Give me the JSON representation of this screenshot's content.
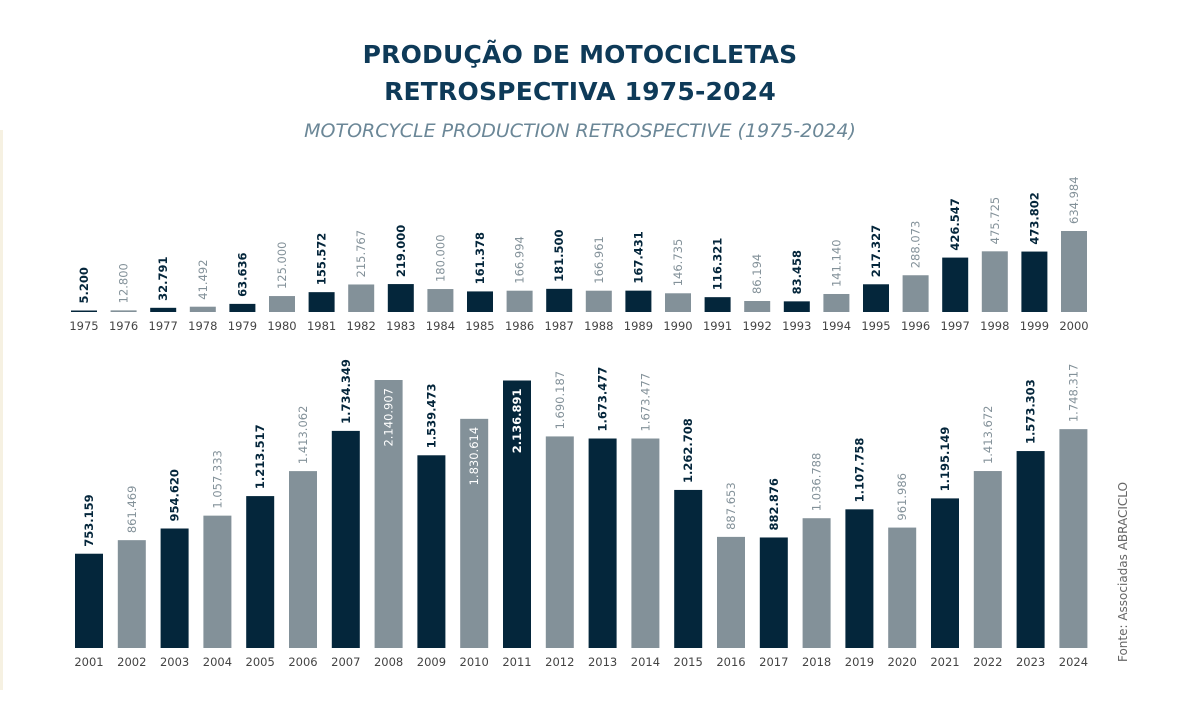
{
  "title": [
    "PRODUÇÃO DE MOTOCICLETAS",
    "RETROSPECTIVA 1975-2024"
  ],
  "subtitle": "MOTORCYCLE PRODUCTION RETROSPECTIVE (1975-2024)",
  "source": "Fonte: Associadas ABRACICLO",
  "colors": {
    "dark": "#04263b",
    "light": "#839199",
    "title": "#0e3a58",
    "subtitle": "#6b8797"
  },
  "chart_data": [
    {
      "type": "bar",
      "title": "",
      "xlabel": "",
      "ylabel": "",
      "categories": [
        "1975",
        "1976",
        "1977",
        "1978",
        "1979",
        "1980",
        "1981",
        "1982",
        "1983",
        "1984",
        "1985",
        "1986",
        "1987",
        "1988",
        "1989",
        "1990",
        "1991",
        "1992",
        "1993",
        "1994",
        "1995",
        "1996",
        "1997",
        "1998",
        "1999",
        "2000"
      ],
      "values": [
        5200,
        12800,
        32791,
        41492,
        63636,
        125000,
        155572,
        215767,
        219000,
        180000,
        161378,
        166994,
        181500,
        166961,
        167431,
        146735,
        116321,
        86194,
        83458,
        141140,
        217327,
        288073,
        426547,
        475725,
        473802,
        634984
      ],
      "value_labels": [
        "5.200",
        "12.800",
        "32.791",
        "41.492",
        "63.636",
        "125.000",
        "155.572",
        "215.767",
        "219.000",
        "180.000",
        "161.378",
        "166.994",
        "181.500",
        "166.961",
        "167.431",
        "146.735",
        "116.321",
        "86.194",
        "83.458",
        "141.140",
        "217.327",
        "288.073",
        "426.547",
        "475.725",
        "473.802",
        "634.984"
      ],
      "bar_colors": [
        "dark",
        "light",
        "dark",
        "light",
        "dark",
        "light",
        "dark",
        "light",
        "dark",
        "light",
        "dark",
        "light",
        "dark",
        "light",
        "dark",
        "light",
        "dark",
        "light",
        "dark",
        "light",
        "dark",
        "light",
        "dark",
        "light",
        "dark",
        "light"
      ],
      "grid": false,
      "legend": "none"
    },
    {
      "type": "bar",
      "title": "",
      "xlabel": "",
      "ylabel": "",
      "categories": [
        "2001",
        "2002",
        "2003",
        "2004",
        "2005",
        "2006",
        "2007",
        "2008",
        "2009",
        "2010",
        "2011",
        "2012",
        "2013",
        "2014",
        "2015",
        "2016",
        "2017",
        "2018",
        "2019",
        "2020",
        "2021",
        "2022",
        "2023",
        "2024"
      ],
      "values": [
        753159,
        861469,
        954620,
        1057333,
        1213517,
        1413062,
        1734349,
        2140907,
        1539473,
        1830614,
        2136891,
        1690187,
        1673477,
        1673477,
        1262708,
        887653,
        882876,
        1036788,
        1107758,
        961986,
        1195149,
        1413672,
        1573303,
        1748317
      ],
      "value_labels": [
        "753.159",
        "861.469",
        "954.620",
        "1.057.333",
        "1.213.517",
        "1.413.062",
        "1.734.349",
        "2.140.907",
        "1.539.473",
        "1.830.614",
        "2.136.891",
        "1.690.187",
        "1.673.477",
        "1.673.477",
        "1.262.708",
        "887.653",
        "882.876",
        "1.036.788",
        "1.107.758",
        "961.986",
        "1.195.149",
        "1.413.672",
        "1.573.303",
        "1.748.317"
      ],
      "bar_colors": [
        "dark",
        "light",
        "dark",
        "light",
        "dark",
        "light",
        "dark",
        "light",
        "dark",
        "light",
        "dark",
        "light",
        "dark",
        "light",
        "dark",
        "light",
        "dark",
        "light",
        "dark",
        "light",
        "dark",
        "light",
        "dark",
        "light"
      ],
      "labels_inside": [
        "2008",
        "2010",
        "2011"
      ],
      "grid": false,
      "legend": "none"
    }
  ]
}
